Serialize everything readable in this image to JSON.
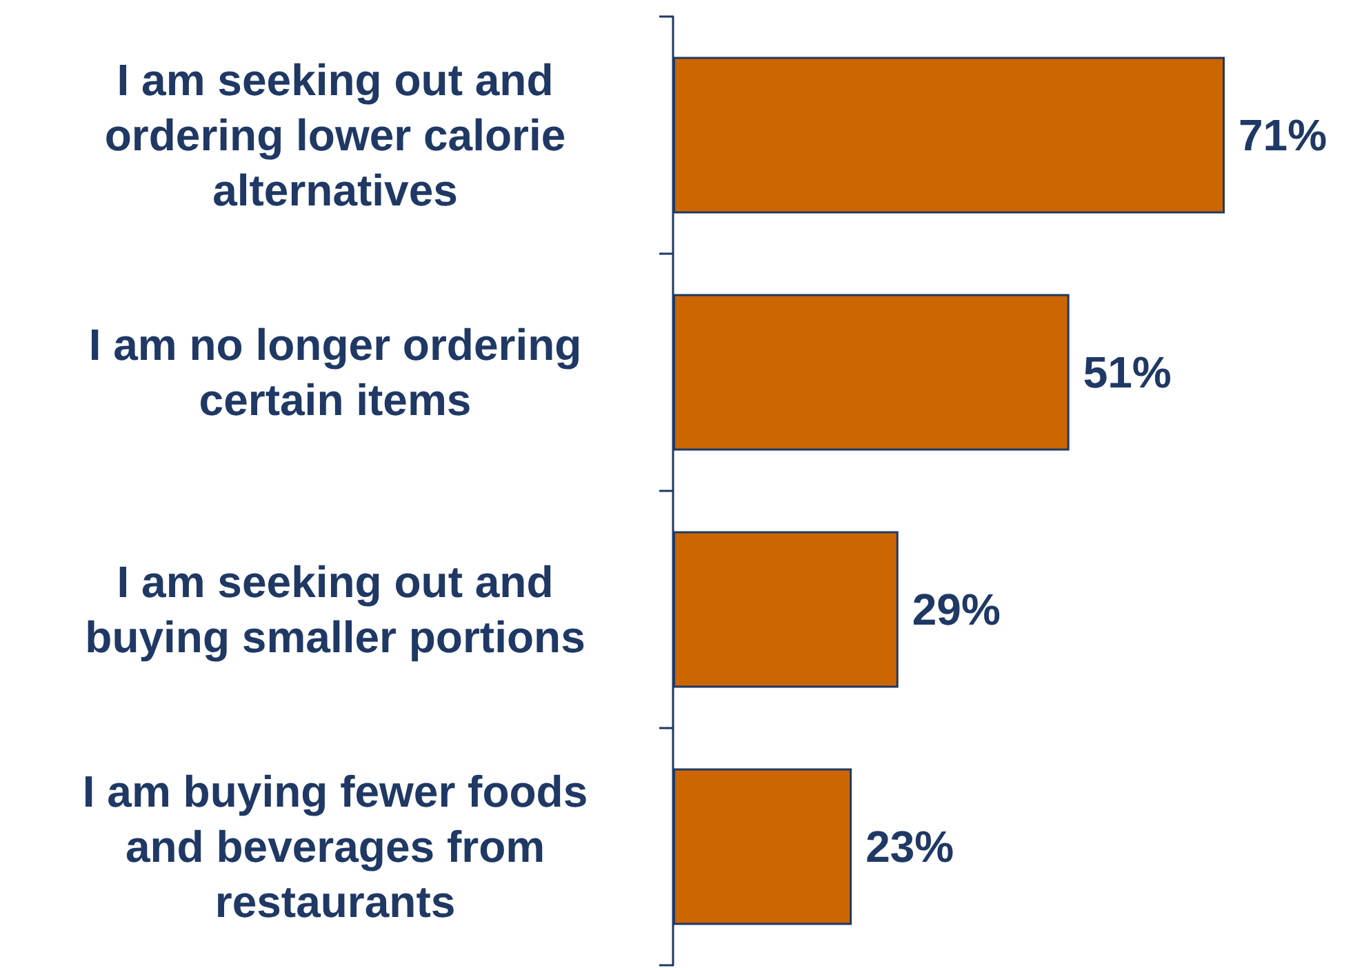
{
  "chart_data": {
    "type": "bar",
    "orientation": "horizontal",
    "categories": [
      "I am seeking out and\nordering lower calorie\nalternatives",
      "I am no longer ordering\ncertain items",
      "I am seeking out and\nbuying smaller portions",
      "I am buying fewer foods\nand beverages from\nrestaurants"
    ],
    "values": [
      71,
      51,
      29,
      23
    ],
    "value_labels": [
      "71%",
      "51%",
      "29%",
      "23%"
    ],
    "color": "#cc6600"
  }
}
